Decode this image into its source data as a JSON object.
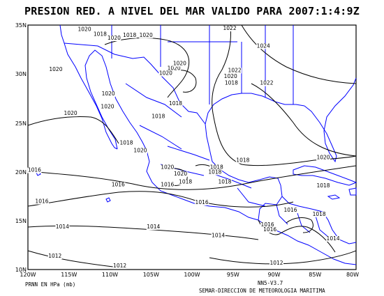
{
  "title": "PRESION RED. A NIVEL DEL MAR VALIDO PARA 2007:1:4:9Z",
  "map": {
    "lon_range": [
      -120,
      -80
    ],
    "lat_range": [
      10,
      35
    ],
    "lat_ticks": [
      "10N",
      "15N",
      "20N",
      "25N",
      "30N",
      "35N"
    ],
    "lon_ticks": [
      "120W",
      "115W",
      "110W",
      "105W",
      "100W",
      "95W",
      "90W",
      "85W",
      "80W"
    ],
    "coast_color": "#0000ff",
    "contour_color": "#000000",
    "isobar_labels": [
      {
        "text": "1022",
        "lon": -90.9,
        "lat": 28.9
      },
      {
        "text": "1022",
        "lon": -95.4,
        "lat": 34.5
      },
      {
        "text": "1024",
        "lon": -91.3,
        "lat": 32.7
      },
      {
        "text": "1020",
        "lon": -113.1,
        "lat": 34.4
      },
      {
        "text": "1018",
        "lon": -111.2,
        "lat": 33.9
      },
      {
        "text": "1020",
        "lon": -109.5,
        "lat": 33.5
      },
      {
        "text": "1018",
        "lon": -107.6,
        "lat": 33.8
      },
      {
        "text": "1020",
        "lon": -105.6,
        "lat": 33.8
      },
      {
        "text": "1020",
        "lon": -116.6,
        "lat": 30.3
      },
      {
        "text": "1020",
        "lon": -110.2,
        "lat": 27.8
      },
      {
        "text": "1020",
        "lon": -110.3,
        "lat": 26.5
      },
      {
        "text": "1020",
        "lon": -114.8,
        "lat": 25.8
      },
      {
        "text": "1018",
        "lon": -108.0,
        "lat": 22.8
      },
      {
        "text": "1020",
        "lon": -106.3,
        "lat": 22.0
      },
      {
        "text": "1018",
        "lon": -104.1,
        "lat": 25.5
      },
      {
        "text": "1018",
        "lon": -102.0,
        "lat": 26.8
      },
      {
        "text": "1020",
        "lon": -102.2,
        "lat": 30.4
      },
      {
        "text": "1020",
        "lon": -101.5,
        "lat": 30.9
      },
      {
        "text": "1020",
        "lon": -103.2,
        "lat": 29.9
      },
      {
        "text": "1022",
        "lon": -94.8,
        "lat": 30.2
      },
      {
        "text": "1020",
        "lon": -95.3,
        "lat": 29.6
      },
      {
        "text": "1018",
        "lon": -95.2,
        "lat": 28.9
      },
      {
        "text": "1020",
        "lon": -103.0,
        "lat": 20.3
      },
      {
        "text": "1020",
        "lon": -101.4,
        "lat": 19.6
      },
      {
        "text": "1018",
        "lon": -100.8,
        "lat": 18.8
      },
      {
        "text": "1016",
        "lon": -103.0,
        "lat": 18.5
      },
      {
        "text": "1018",
        "lon": -97.0,
        "lat": 20.3
      },
      {
        "text": "1018",
        "lon": -97.2,
        "lat": 19.8
      },
      {
        "text": "1018",
        "lon": -93.8,
        "lat": 21.0
      },
      {
        "text": "1018",
        "lon": -96.0,
        "lat": 18.8
      },
      {
        "text": "1016",
        "lon": -98.8,
        "lat": 16.7
      },
      {
        "text": "1020",
        "lon": -84.0,
        "lat": 21.3
      },
      {
        "text": "1018",
        "lon": -84.0,
        "lat": 18.4
      },
      {
        "text": "1016",
        "lon": -119.2,
        "lat": 20.0
      },
      {
        "text": "1016",
        "lon": -109.0,
        "lat": 18.5
      },
      {
        "text": "1016",
        "lon": -118.3,
        "lat": 16.8
      },
      {
        "text": "1014",
        "lon": -115.8,
        "lat": 14.2
      },
      {
        "text": "1014",
        "lon": -104.7,
        "lat": 14.2
      },
      {
        "text": "1014",
        "lon": -96.8,
        "lat": 13.3
      },
      {
        "text": "1016",
        "lon": -90.8,
        "lat": 14.4
      },
      {
        "text": "1016",
        "lon": -90.5,
        "lat": 13.9
      },
      {
        "text": "1016",
        "lon": -88.0,
        "lat": 15.9
      },
      {
        "text": "1018",
        "lon": -84.5,
        "lat": 15.5
      },
      {
        "text": "1014",
        "lon": -82.8,
        "lat": 13.0
      },
      {
        "text": "1012",
        "lon": -116.7,
        "lat": 11.2
      },
      {
        "text": "1012",
        "lon": -108.8,
        "lat": 10.2
      },
      {
        "text": "1012",
        "lon": -89.7,
        "lat": 10.5
      }
    ]
  },
  "footer": {
    "units": "PRNN EN HPa (mb)",
    "version": "NN5-V3.7",
    "credit": "SEMAR-DIRECCION DE METEOROLOGIA MARITIMA"
  }
}
